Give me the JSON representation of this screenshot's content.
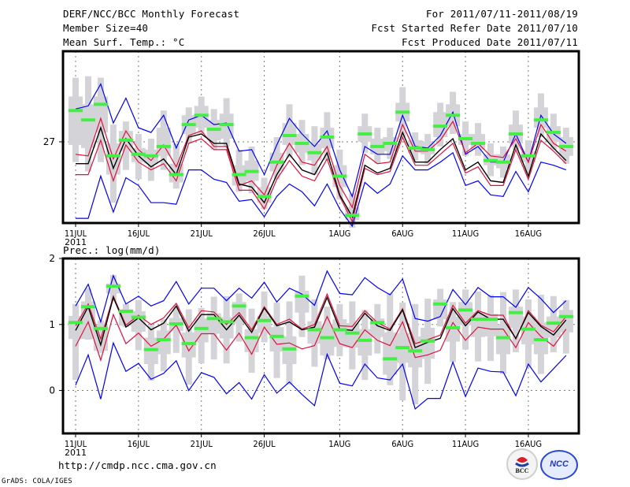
{
  "header": {
    "title": "DERF/NCC/BCC Monthly Forecast",
    "member_size": "Member Size=40",
    "variable_top": "Mean Surf. Temp.: °C",
    "period": "For 2011/07/11-2011/08/19",
    "started": "Fcst Started Refer Date 2011/07/10",
    "produced": "Fcst Produced Date 2011/07/11"
  },
  "footer": {
    "url": "http://cmdp.ncc.cma.gov.cn",
    "credit": "GrADS: COLA/IGES",
    "logo_bcc": "BCC",
    "logo_ncc": "NCC"
  },
  "colors": {
    "outer": "#0000ff",
    "inner": "#e0103c",
    "mean": "#000000",
    "box": "#d4d4d8",
    "median": "#44ee44",
    "grid": "#7a7a7a"
  },
  "chart_data": [
    {
      "type": "line",
      "title": "Mean Surf. Temp.: °C",
      "xlabel": "",
      "ylabel": "",
      "x_ticks": [
        "11JUL",
        "16JUL",
        "21JUL",
        "26JUL",
        "1AUG",
        "6AUG",
        "11AUG",
        "16AUG"
      ],
      "x_tick_days": [
        0,
        5,
        10,
        15,
        21,
        26,
        31,
        36
      ],
      "x_year_label": "2011",
      "y_ticks": [
        27
      ],
      "ylim": [
        24.4,
        29.9
      ],
      "grid": true,
      "days": 40,
      "series": [
        {
          "name": "max",
          "values": [
            28.05,
            28.15,
            28.85,
            27.6,
            28.4,
            27.45,
            27.3,
            27.85,
            26.8,
            27.7,
            27.85,
            27.55,
            27.6,
            26.7,
            26.75,
            25.95,
            26.9,
            27.75,
            27.25,
            26.85,
            27.35,
            26.1,
            25.25,
            26.85,
            26.6,
            26.6,
            27.85,
            26.85,
            26.8,
            27.2,
            27.95,
            26.6,
            26.85,
            26.35,
            26.35,
            27.25,
            26.35,
            27.85,
            27.25,
            26.95
          ]
        },
        {
          "name": "upper",
          "values": [
            26.6,
            26.55,
            27.75,
            26.45,
            27.35,
            26.75,
            26.4,
            26.9,
            26.2,
            27.2,
            27.35,
            26.85,
            26.85,
            25.6,
            25.75,
            25.3,
            26.25,
            26.95,
            26.35,
            26.25,
            26.85,
            25.6,
            24.9,
            26.6,
            26.3,
            26.35,
            27.55,
            26.7,
            26.7,
            27.05,
            27.65,
            26.65,
            26.95,
            26.55,
            26.5,
            27.1,
            26.35,
            27.55,
            26.95,
            26.7
          ]
        },
        {
          "name": "mean",
          "values": [
            26.3,
            26.3,
            27.45,
            26.15,
            27.1,
            26.55,
            26.2,
            26.45,
            25.95,
            27.15,
            27.25,
            26.95,
            26.95,
            25.65,
            25.55,
            25.05,
            25.95,
            26.6,
            26.1,
            25.95,
            26.65,
            25.3,
            24.6,
            26.25,
            26.0,
            26.15,
            27.3,
            26.35,
            26.35,
            26.75,
            27.1,
            26.1,
            26.35,
            25.75,
            25.7,
            26.9,
            25.9,
            27.25,
            26.8,
            26.4
          ]
        },
        {
          "name": "lower",
          "values": [
            25.95,
            25.95,
            27.05,
            25.75,
            26.9,
            26.35,
            26.1,
            26.3,
            25.75,
            26.95,
            27.1,
            26.75,
            26.75,
            25.45,
            25.45,
            24.85,
            25.8,
            26.4,
            25.9,
            25.75,
            26.45,
            25.25,
            24.45,
            26.15,
            25.95,
            26.05,
            27.15,
            26.25,
            26.25,
            26.6,
            26.95,
            26.0,
            26.2,
            25.6,
            25.6,
            26.75,
            25.8,
            27.05,
            26.7,
            26.3
          ]
        },
        {
          "name": "min",
          "values": [
            24.55,
            24.55,
            25.9,
            24.75,
            25.85,
            25.6,
            25.05,
            25.05,
            25.0,
            26.1,
            26.1,
            25.8,
            25.7,
            25.1,
            25.15,
            24.6,
            25.25,
            25.65,
            25.4,
            24.95,
            25.65,
            24.85,
            24.3,
            25.7,
            25.35,
            25.65,
            26.55,
            26.1,
            26.1,
            26.35,
            26.65,
            25.6,
            25.75,
            25.3,
            25.25,
            26.05,
            25.4,
            26.35,
            26.25,
            26.1
          ]
        },
        {
          "name": "median",
          "values": [
            28.0,
            27.7,
            28.2,
            26.55,
            27.05,
            26.6,
            26.55,
            26.85,
            25.95,
            27.55,
            27.85,
            27.4,
            27.55,
            25.95,
            26.05,
            25.25,
            26.35,
            27.2,
            26.95,
            26.65,
            27.15,
            25.9,
            24.65,
            27.25,
            26.85,
            26.95,
            27.95,
            26.8,
            26.75,
            27.5,
            27.85,
            27.1,
            26.95,
            26.4,
            26.35,
            27.25,
            26.55,
            27.7,
            27.3,
            26.85
          ]
        },
        {
          "name": "box_q1",
          "values": [
            26.9,
            26.8,
            27.3,
            25.95,
            26.7,
            26.35,
            26.3,
            26.55,
            25.7,
            27.25,
            27.45,
            27.05,
            27.1,
            25.6,
            25.75,
            25.05,
            26.05,
            26.9,
            26.65,
            26.4,
            26.8,
            25.55,
            24.5,
            27.0,
            26.6,
            26.7,
            27.65,
            26.65,
            26.6,
            27.15,
            27.5,
            26.9,
            26.75,
            26.25,
            26.15,
            26.95,
            26.35,
            27.45,
            27.0,
            26.55
          ]
        },
        {
          "name": "box_q3",
          "values": [
            28.45,
            28.2,
            28.45,
            26.95,
            27.35,
            26.8,
            26.75,
            27.45,
            26.3,
            27.85,
            28.15,
            27.7,
            27.9,
            26.25,
            26.4,
            25.55,
            26.65,
            27.6,
            27.25,
            26.95,
            27.45,
            26.25,
            24.9,
            27.5,
            27.1,
            27.15,
            28.25,
            27.05,
            27.0,
            27.95,
            28.2,
            27.25,
            27.25,
            26.6,
            26.6,
            27.55,
            26.7,
            28.1,
            27.5,
            27.15
          ]
        },
        {
          "name": "box_lo",
          "values": [
            26.35,
            26.05,
            26.35,
            25.05,
            26.1,
            25.8,
            25.75,
            26.1,
            25.5,
            26.95,
            27.25,
            26.75,
            26.85,
            25.4,
            25.35,
            24.85,
            25.8,
            26.5,
            26.25,
            25.95,
            26.4,
            25.15,
            24.25,
            26.65,
            26.3,
            26.45,
            27.15,
            26.4,
            26.3,
            26.85,
            27.25,
            26.55,
            26.55,
            25.9,
            25.85,
            26.75,
            26.0,
            27.15,
            26.75,
            26.3
          ]
        },
        {
          "name": "box_hi",
          "values": [
            29.05,
            29.1,
            29.05,
            27.55,
            27.65,
            27.25,
            27.1,
            28.0,
            26.95,
            28.1,
            28.45,
            28.05,
            28.4,
            26.75,
            26.85,
            25.85,
            27.15,
            28.2,
            27.7,
            27.5,
            27.95,
            26.75,
            25.35,
            27.9,
            27.45,
            27.45,
            28.75,
            27.3,
            27.25,
            28.25,
            28.6,
            27.65,
            27.6,
            26.95,
            26.85,
            28.0,
            27.05,
            28.55,
            27.9,
            27.45
          ]
        }
      ]
    },
    {
      "type": "line",
      "title": "Prec.: log(mm/d)",
      "xlabel": "",
      "ylabel": "",
      "x_ticks": [
        "11JUL",
        "16JUL",
        "21JUL",
        "26JUL",
        "1AUG",
        "6AUG",
        "11AUG",
        "16AUG"
      ],
      "x_tick_days": [
        0,
        5,
        10,
        15,
        21,
        26,
        31,
        36
      ],
      "x_year_label": "2011",
      "y_ticks": [
        0,
        1,
        2
      ],
      "ylim": [
        -0.65,
        2.0
      ],
      "grid": true,
      "days": 40,
      "series": [
        {
          "name": "max",
          "values": [
            1.28,
            1.61,
            1.04,
            1.74,
            1.31,
            1.43,
            1.28,
            1.36,
            1.65,
            1.31,
            1.55,
            1.55,
            1.36,
            1.55,
            1.4,
            1.64,
            1.34,
            1.55,
            1.46,
            1.29,
            1.81,
            1.47,
            1.45,
            1.71,
            1.56,
            1.45,
            1.69,
            1.09,
            1.05,
            1.12,
            1.53,
            1.3,
            1.56,
            1.42,
            1.42,
            1.26,
            1.56,
            1.39,
            1.18,
            1.36
          ]
        },
        {
          "name": "upper",
          "values": [
            0.98,
            1.31,
            0.78,
            1.43,
            0.99,
            1.14,
            1.0,
            1.1,
            1.32,
            0.95,
            1.21,
            1.19,
            1.0,
            1.18,
            0.92,
            1.27,
            1.0,
            1.08,
            0.93,
            1.0,
            1.46,
            0.98,
            0.97,
            1.21,
            1.03,
            0.93,
            1.24,
            0.71,
            0.77,
            0.84,
            1.29,
            1.02,
            1.21,
            1.14,
            1.14,
            0.78,
            1.21,
            0.99,
            0.89,
            1.12
          ]
        },
        {
          "name": "mean",
          "values": [
            0.91,
            1.27,
            0.69,
            1.41,
            0.96,
            1.1,
            0.92,
            1.02,
            1.28,
            0.9,
            1.15,
            1.15,
            0.92,
            1.14,
            0.88,
            1.25,
            0.98,
            1.04,
            0.92,
            0.96,
            1.41,
            0.93,
            0.91,
            1.17,
            0.98,
            0.91,
            1.22,
            0.65,
            0.73,
            0.79,
            1.24,
            0.98,
            1.19,
            1.08,
            1.08,
            0.79,
            1.18,
            0.97,
            0.84,
            1.07
          ]
        },
        {
          "name": "lower",
          "values": [
            0.67,
            1.04,
            0.46,
            1.15,
            0.71,
            0.87,
            0.67,
            0.78,
            0.99,
            0.6,
            0.86,
            0.86,
            0.61,
            0.87,
            0.55,
            0.96,
            0.7,
            0.72,
            0.63,
            0.68,
            1.12,
            0.71,
            0.65,
            0.92,
            0.76,
            0.68,
            1.04,
            0.5,
            0.54,
            0.61,
            1.03,
            0.76,
            0.96,
            0.93,
            0.93,
            0.65,
            1.03,
            0.82,
            0.67,
            0.93
          ]
        },
        {
          "name": "min",
          "values": [
            0.08,
            0.54,
            -0.13,
            0.72,
            0.29,
            0.41,
            0.17,
            0.26,
            0.45,
            0.0,
            0.27,
            0.2,
            -0.05,
            0.12,
            -0.13,
            0.24,
            -0.04,
            0.13,
            -0.06,
            -0.23,
            0.55,
            0.11,
            0.07,
            0.4,
            0.19,
            0.16,
            0.4,
            -0.28,
            -0.12,
            -0.12,
            0.43,
            -0.09,
            0.34,
            0.29,
            0.28,
            -0.08,
            0.4,
            0.13,
            0.33,
            0.53
          ]
        },
        {
          "name": "median",
          "values": [
            1.03,
            1.27,
            0.94,
            1.58,
            1.2,
            1.11,
            0.62,
            0.77,
            1.01,
            0.71,
            0.94,
            1.09,
            1.04,
            1.28,
            0.8,
            1.06,
            0.82,
            0.63,
            1.43,
            0.92,
            0.8,
            0.92,
            0.87,
            0.76,
            1.03,
            0.48,
            0.65,
            0.6,
            0.75,
            1.31,
            0.95,
            1.22,
            1.08,
            1.08,
            0.8,
            1.18,
            0.93,
            0.77,
            1.02,
            1.12
          ]
        },
        {
          "name": "box_q1",
          "values": [
            0.78,
            0.78,
            0.6,
            1.47,
            0.98,
            0.89,
            0.4,
            0.55,
            0.9,
            0.5,
            0.73,
            0.86,
            0.79,
            1.01,
            0.58,
            0.87,
            0.59,
            0.4,
            1.18,
            0.71,
            0.53,
            0.66,
            0.65,
            0.53,
            0.81,
            0.24,
            0.42,
            0.35,
            0.48,
            1.08,
            0.74,
            0.99,
            0.81,
            0.82,
            0.55,
            0.95,
            0.7,
            0.55,
            0.8,
            0.88
          ]
        },
        {
          "name": "box_q3",
          "values": [
            1.13,
            1.35,
            1.0,
            1.62,
            1.23,
            1.2,
            0.8,
            0.91,
            1.1,
            0.88,
            1.09,
            1.17,
            1.11,
            1.34,
            0.93,
            1.13,
            0.96,
            0.82,
            1.51,
            1.05,
            0.99,
            1.08,
            1.02,
            0.93,
            1.09,
            0.88,
            0.87,
            0.82,
            0.95,
            1.38,
            1.12,
            1.34,
            1.19,
            1.16,
            1.0,
            1.27,
            1.12,
            1.03,
            1.12,
            1.22
          ]
        },
        {
          "name": "box_lo",
          "values": [
            0.16,
            0.77,
            0.57,
            1.35,
            0.96,
            0.61,
            0.15,
            0.29,
            0.57,
            0.09,
            0.41,
            0.47,
            0.41,
            0.74,
            0.27,
            0.73,
            0.19,
            0.09,
            0.81,
            0.36,
            0.47,
            0.52,
            0.32,
            0.16,
            0.56,
            0.08,
            -0.15,
            -0.21,
            0.1,
            0.97,
            0.43,
            0.62,
            0.44,
            0.45,
            0.25,
            0.58,
            0.35,
            0.25,
            0.58,
            0.56
          ]
        },
        {
          "name": "box_hi",
          "values": [
            1.31,
            1.55,
            1.06,
            1.75,
            1.31,
            1.37,
            1.0,
            1.08,
            1.29,
            1.23,
            1.25,
            1.42,
            1.43,
            1.47,
            1.24,
            1.5,
            1.33,
            1.35,
            1.74,
            1.38,
            1.27,
            1.31,
            1.35,
            1.22,
            1.31,
            1.48,
            1.33,
            1.31,
            1.39,
            1.54,
            1.34,
            1.53,
            1.5,
            1.45,
            1.49,
            1.53,
            1.38,
            1.45,
            1.43,
            1.37
          ]
        }
      ]
    }
  ]
}
